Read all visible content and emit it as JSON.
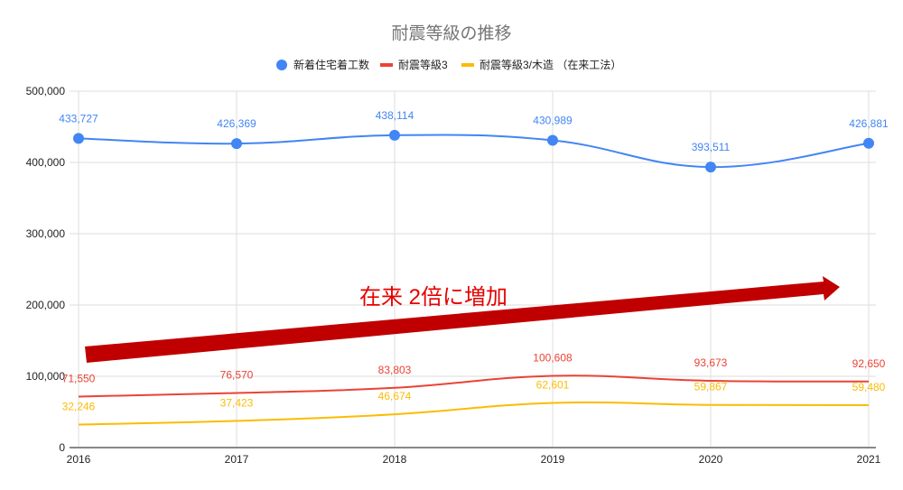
{
  "chart_data": {
    "type": "line",
    "title": "耐震等級の推移",
    "categories": [
      "2016",
      "2017",
      "2018",
      "2019",
      "2020",
      "2021"
    ],
    "ylim": [
      0,
      500000
    ],
    "yticks": [
      0,
      100000,
      200000,
      300000,
      400000,
      500000
    ],
    "ytick_labels": [
      "0",
      "100,000",
      "200,000",
      "300,000",
      "400,000",
      "500,000"
    ],
    "grid": true,
    "legend_position": "top",
    "series": [
      {
        "name": "新着住宅着工数",
        "color": "#4285f4",
        "marker": "circle",
        "values": [
          433727,
          426369,
          438114,
          430989,
          393511,
          426881
        ],
        "labels": [
          "433,727",
          "426,369",
          "438,114",
          "430,989",
          "393,511",
          "426,881"
        ]
      },
      {
        "name": "耐震等級3",
        "color": "#ea4335",
        "marker": "line",
        "values": [
          71550,
          76570,
          83803,
          100608,
          93673,
          92650
        ],
        "labels": [
          "71,550",
          "76,570",
          "83,803",
          "100,608",
          "93,673",
          "92,650"
        ]
      },
      {
        "name": "耐震等級3/木造 （在来工法）",
        "color": "#fbbc04",
        "marker": "line",
        "values": [
          32246,
          37423,
          46674,
          62601,
          59867,
          59480
        ],
        "labels": [
          "32,246",
          "37,423",
          "46,674",
          "62,601",
          "59,867",
          "59,480"
        ]
      }
    ],
    "annotation": {
      "text": "在来 2倍に増加",
      "color": "#e60000",
      "arrow_color": "#c00000"
    }
  }
}
